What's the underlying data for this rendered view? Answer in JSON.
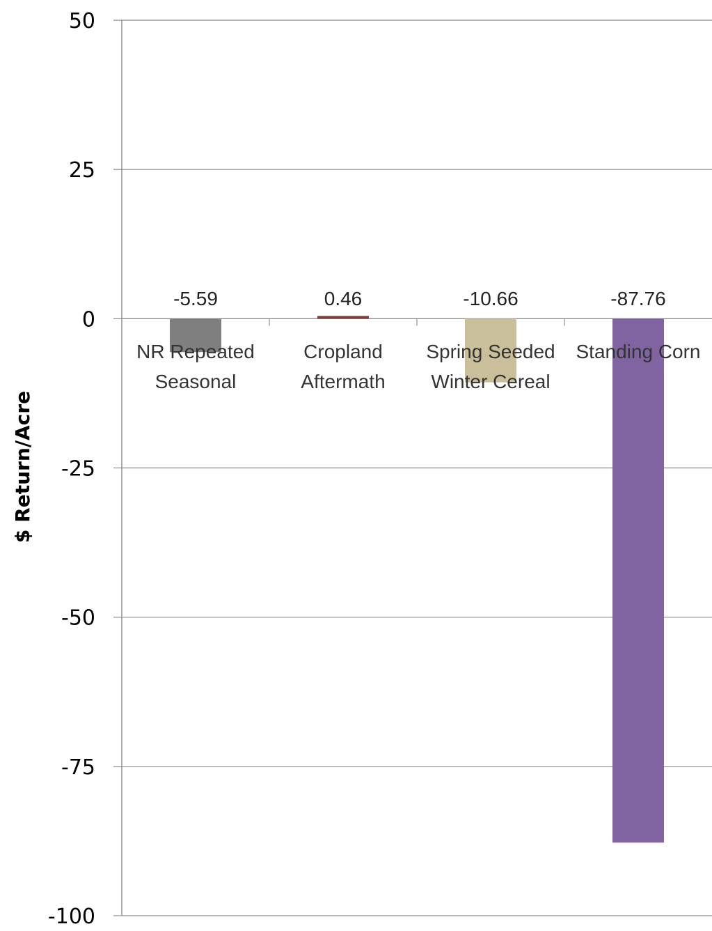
{
  "chart_data": {
    "type": "bar",
    "title": "",
    "xlabel": "",
    "ylabel": "$ Return/Acre",
    "ylim": [
      -100,
      50
    ],
    "yticks": [
      50,
      25,
      0,
      -25,
      -50,
      -75,
      -100
    ],
    "grid": true,
    "legend": "none",
    "categories": [
      [
        "NR Repeated",
        "Seasonal"
      ],
      [
        "Cropland",
        "Aftermath"
      ],
      [
        "Spring Seeded",
        "Winter Cereal"
      ],
      [
        "Standing Corn"
      ]
    ],
    "values": [
      -5.59,
      0.46,
      -10.66,
      -87.76
    ],
    "data_labels": [
      "-5.59",
      "0.46",
      "-10.66",
      "-87.76"
    ],
    "colors": [
      "#7f7f7f",
      "#7b3f3a",
      "#c9bf9a",
      "#8064a2"
    ]
  }
}
